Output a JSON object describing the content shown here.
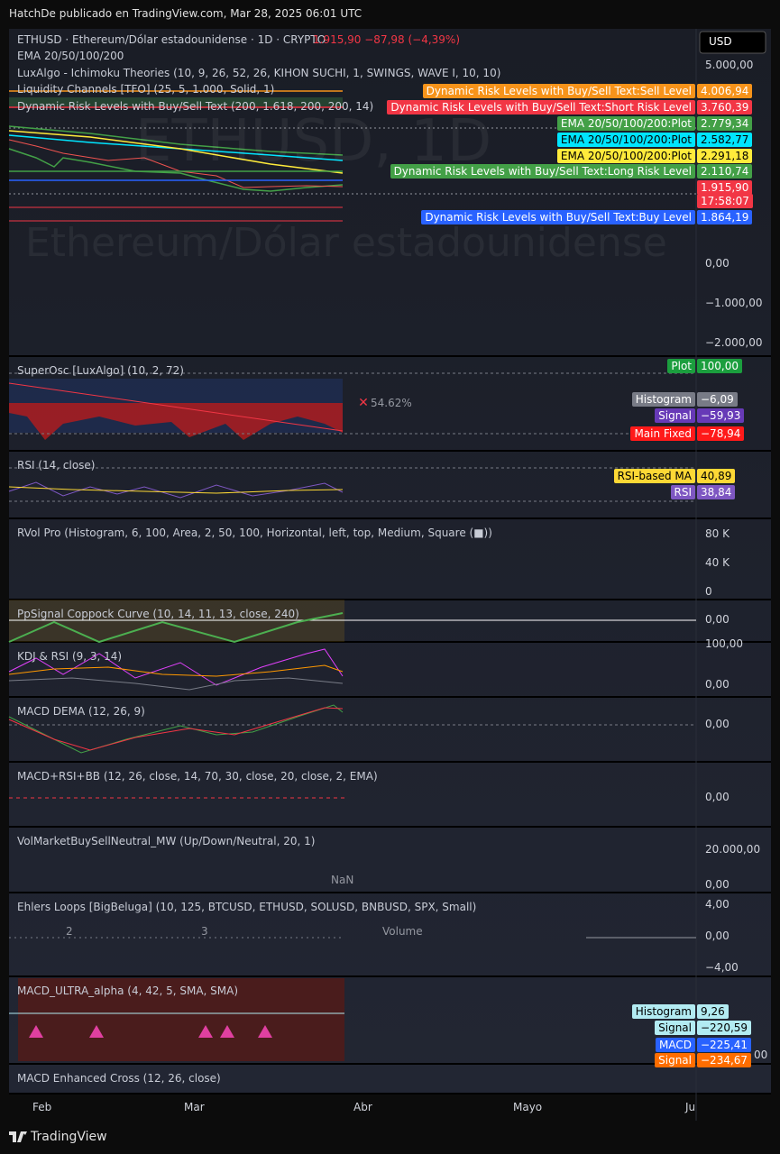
{
  "header": {
    "title": "HatchDe publicado en TradingView.com, Mar 28, 2025 06:01 UTC"
  },
  "main": {
    "symbol": "ETHUSD · Ethereum/Dólar estadounidense · 1D · CRYPTO",
    "quote": "1.915,90 −87,98 (−4,39%)",
    "indicators": [
      "EMA 20/50/100/200",
      "LuxAlgo - Ichimoku Theories (10, 9, 26, 52, 26, KIHON SUCHI, 1, SWINGS, WAVE I, 10, 10)",
      "Liquidity Channels [TFO] (25, 5, 1.000, Solid, 1)",
      "Dynamic Risk Levels with Buy/Sell Text (200, 1.618, 200, 200, 14)"
    ],
    "watermark_symbol": "ETHUSD, 1D",
    "watermark": "Ethereum/Dólar estadounidense",
    "currency": "USD",
    "axis": [
      "5.000,00",
      "0,00",
      "−1.000,00",
      "−2.000,00"
    ],
    "tags": [
      {
        "label": "Dynamic Risk Levels with Buy/Sell Text:Sell Level",
        "value": "4.006,94",
        "color": "#f7931a"
      },
      {
        "label": "Dynamic Risk Levels with Buy/Sell Text:Short Risk Level",
        "value": "3.760,39",
        "color": "#f23645"
      },
      {
        "label": "EMA 20/50/100/200:Plot",
        "value": "2.779,34",
        "color": "#43a047"
      },
      {
        "label": "EMA 20/50/100/200:Plot",
        "value": "2.582,77",
        "color": "#00e5ff"
      },
      {
        "label": "EMA 20/50/100/200:Plot",
        "value": "2.291,18",
        "color": "#ffeb3b"
      },
      {
        "label": "Dynamic Risk Levels with Buy/Sell Text:Long Risk Level",
        "value": "2.110,74",
        "color": "#43a047"
      },
      {
        "value": "1.915,90",
        "time": "17:58:07",
        "color": "#f23645"
      },
      {
        "label": "Dynamic Risk Levels with Buy/Sell Text:Buy Level",
        "value": "1.864,19",
        "color": "#2962ff"
      }
    ]
  },
  "panes": [
    {
      "title": "SuperOsc [LuxAlgo] (10, 2, 72)",
      "axis": [],
      "notes": [
        "54.62%"
      ],
      "tags": [
        {
          "label": "Plot",
          "value": "100,00",
          "color": "#1b9e3e"
        },
        {
          "label": "Histogram",
          "value": "−6,09",
          "color": "#787b86"
        },
        {
          "label": "Signal",
          "value": "−59,93",
          "color": "#673ab7"
        },
        {
          "label": "Main Fixed",
          "value": "−78,94",
          "color": "#ff1a1a"
        }
      ]
    },
    {
      "title": "RSI (14, close)",
      "axis": [],
      "notes": [],
      "tags": [
        {
          "label": "RSI-based MA",
          "value": "40,89",
          "color": "#fdd835"
        },
        {
          "label": "RSI",
          "value": "38,84",
          "color": "#7e57c2"
        }
      ]
    },
    {
      "title": "RVol Pro (Histogram, 6, 100, Area, 2, 50, 100, Horizontal, left, top, Medium, Square (■))",
      "axis": [
        "80 K",
        "40 K",
        "0"
      ],
      "notes": [],
      "tags": []
    },
    {
      "title": "PpSignal Coppock Curve (10, 14, 11, 13, close, 240)",
      "axis": [
        "0,00"
      ],
      "notes": [],
      "tags": []
    },
    {
      "title": "KDJ & RSI (9, 3, 14)",
      "axis": [
        "100,00",
        "0,00"
      ],
      "notes": [],
      "tags": []
    },
    {
      "title": "MACD DEMA (12, 26, 9)",
      "axis": [
        "0,00"
      ],
      "notes": [],
      "tags": []
    },
    {
      "title": "MACD+RSI+BB (12, 26, close, 14, 70, 30, close, 20, close, 2, EMA)",
      "axis": [
        "0,00"
      ],
      "notes": [],
      "tags": []
    },
    {
      "title": "VolMarketBuySellNeutral_MW (Up/Down/Neutral, 20, 1)",
      "axis": [
        "20.000,00",
        "0,00"
      ],
      "notes": [
        "NaN"
      ],
      "tags": []
    },
    {
      "title": "Ehlers Loops [BigBeluga] (10, 125, BTCUSD, ETHUSD, SOLUSD, BNBUSD, SPX, Small)",
      "axis": [
        "4,00",
        "0,00",
        "−4,00"
      ],
      "notes": [
        "2",
        "3",
        "Volume"
      ],
      "tags": []
    },
    {
      "title": "MACD_ULTRA_alpha (4, 42, 5, SMA, SMA)",
      "axis": [
        "00"
      ],
      "notes": [],
      "tags": [
        {
          "label": "Histogram",
          "value": "9,26",
          "color": "#b2ebf2"
        },
        {
          "label": "Signal",
          "value": "−220,59",
          "color": "#b2ebf2"
        },
        {
          "label": "MACD",
          "value": "−225,41",
          "color": "#2962ff"
        },
        {
          "label": "Signal",
          "value": "−234,67",
          "color": "#ff6d00"
        }
      ]
    },
    {
      "title": "MACD Enhanced Cross (12, 26, close)",
      "axis": [],
      "notes": [],
      "tags": []
    }
  ],
  "time_axis": [
    "Feb",
    "Mar",
    "Abr",
    "Mayo",
    "Ju"
  ],
  "footer": {
    "brand": "TradingView"
  }
}
